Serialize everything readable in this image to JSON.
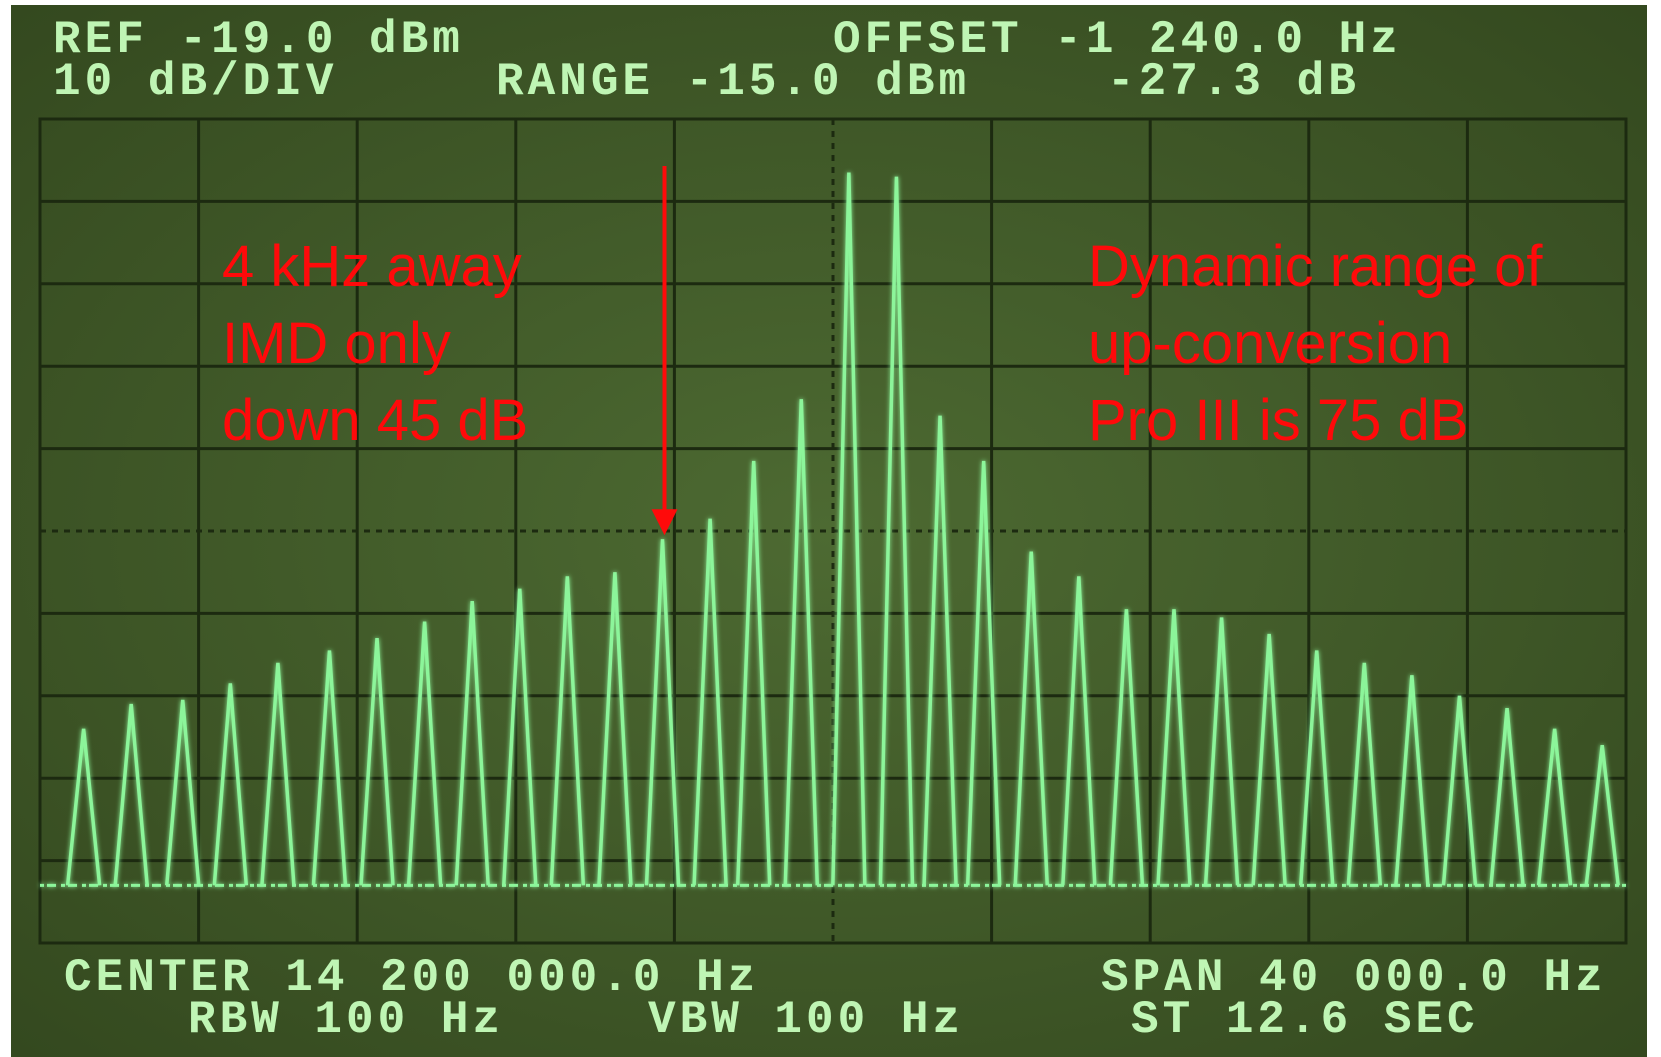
{
  "chart_data": {
    "type": "spectrum",
    "readouts": [
      "REF -19.0 dBm",
      "10 dB/DIV",
      "RANGE -15.0 dBm",
      "OFFSET -1 240.0 Hz",
      "-27.3 dB",
      "CENTER 14 200 000.0 Hz",
      "RBW 100 Hz",
      "VBW 100 Hz",
      "SPAN 40 000.0 Hz",
      "ST 12.6 SEC"
    ],
    "annotations": [
      {
        "lines": [
          "4 kHz away",
          "IMD only",
          "down 45 dB"
        ],
        "color": "#ff0a0a"
      },
      {
        "lines": [
          "Dynamic range of",
          "up-conversion",
          "Pro III is 75 dB"
        ],
        "color": "#ff0a0a"
      }
    ],
    "x": [
      -18.9,
      -17.7,
      -16.4,
      -15.2,
      -14.0,
      -12.7,
      -11.5,
      -10.3,
      -9.1,
      -7.9,
      -6.7,
      -5.5,
      -4.3,
      -3.1,
      -2.0,
      -0.8,
      0.4,
      1.6,
      2.7,
      3.8,
      5.0,
      6.2,
      7.4,
      8.6,
      9.8,
      11.0,
      12.2,
      13.4,
      14.6,
      15.8,
      17.0,
      18.2,
      19.4
    ],
    "values": [
      -93,
      -90,
      -89.5,
      -87.5,
      -85,
      -83.5,
      -82,
      -80,
      -77.5,
      -76,
      -74.5,
      -74,
      -70,
      -67.5,
      -60.5,
      -53,
      -25.5,
      -26,
      -55,
      -60.5,
      -71.5,
      -74.5,
      -78.5,
      -78.5,
      -79.5,
      -81.5,
      -83.5,
      -85,
      -86.5,
      -89,
      -90.5,
      -93,
      -95
    ],
    "noise_floor": -112,
    "color": "#8cf59a",
    "xlim": [
      -20,
      20
    ],
    "xticks": [
      -20,
      -16,
      -12,
      -8,
      -4,
      0,
      4,
      8,
      12,
      16,
      20
    ],
    "ylim": [
      -119,
      -19
    ],
    "yticks": [
      -119,
      -109,
      -99,
      -89,
      -79,
      -69,
      -59,
      -49,
      -39,
      -29,
      -19
    ],
    "grid": true
  }
}
